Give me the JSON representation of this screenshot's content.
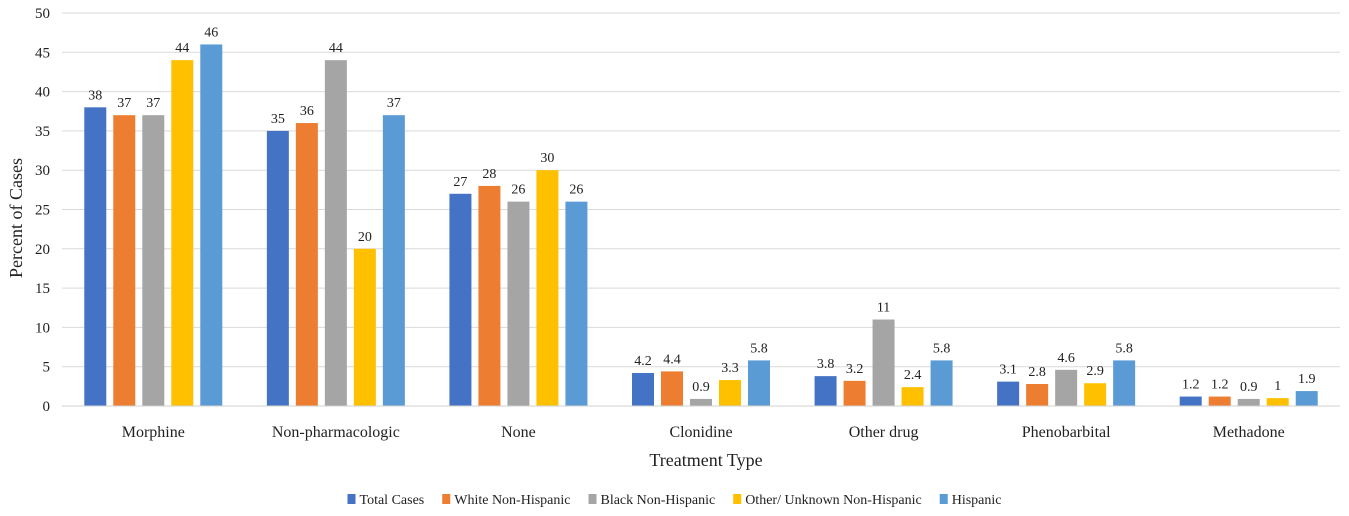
{
  "chart_data": {
    "type": "bar",
    "title": "",
    "xlabel": "Treatment Type",
    "ylabel": "Percent of Cases",
    "ylim": [
      0,
      50
    ],
    "yticks": [
      0,
      5,
      10,
      15,
      20,
      25,
      30,
      35,
      40,
      45,
      50
    ],
    "grid": true,
    "legend_position": "bottom",
    "categories": [
      "Morphine",
      "Non-pharmacologic",
      "None",
      "Clonidine",
      "Other drug",
      "Phenobarbital",
      "Methadone"
    ],
    "series": [
      {
        "name": "Total Cases",
        "color": "#4472C4",
        "values": [
          38,
          35,
          27,
          4.2,
          3.8,
          3.1,
          1.2
        ],
        "labels": [
          "38",
          "35",
          "27",
          "4.2",
          "3.8",
          "3.1",
          "1.2"
        ]
      },
      {
        "name": "White Non-Hispanic",
        "color": "#ED7D31",
        "values": [
          37,
          36,
          28,
          4.4,
          3.2,
          2.8,
          1.2
        ],
        "labels": [
          "37",
          "36",
          "28",
          "4.4",
          "3.2",
          "2.8",
          "1.2"
        ]
      },
      {
        "name": "Black Non-Hispanic",
        "color": "#A5A5A5",
        "values": [
          37,
          44,
          26,
          0.9,
          11,
          4.6,
          0.9
        ],
        "labels": [
          "37",
          "44",
          "26",
          "0.9",
          "11",
          "4.6",
          "0.9"
        ]
      },
      {
        "name": "Other/ Unknown Non-Hispanic",
        "color": "#FFC000",
        "values": [
          44,
          20,
          30,
          3.3,
          2.4,
          2.9,
          1
        ],
        "labels": [
          "44",
          "20",
          "30",
          "3.3",
          "2.4",
          "2.9",
          "1"
        ]
      },
      {
        "name": "Hispanic",
        "color": "#5B9BD5",
        "values": [
          46,
          37,
          26,
          5.8,
          5.8,
          5.8,
          1.9
        ],
        "labels": [
          "46",
          "37",
          "26",
          "5.8",
          "5.8",
          "5.8",
          "1.9"
        ]
      }
    ]
  }
}
